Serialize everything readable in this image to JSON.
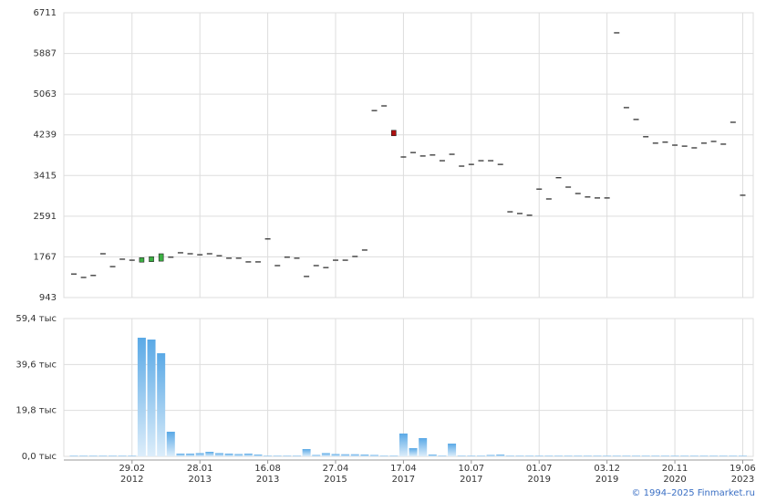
{
  "chart_data": [
    {
      "type": "candlestick",
      "open": [
        1420,
        1350,
        1390,
        1830,
        1570,
        1720,
        1700,
        1660,
        1670,
        1680,
        1760,
        1850,
        1830,
        1810,
        1830,
        1790,
        1740,
        1740,
        1665,
        1665,
        2130,
        1590,
        1760,
        1740,
        1370,
        1590,
        1550,
        1700,
        1700,
        1775,
        1905,
        4730,
        4825,
        4330,
        3790,
        3880,
        3810,
        3830,
        3715,
        3845,
        3605,
        3640,
        3715,
        3715,
        3640,
        2680,
        2645,
        2610,
        3140,
        2940,
        3370,
        3180,
        3050,
        2980,
        2960,
        2960,
        6305,
        4790,
        4550,
        4200,
        4070,
        4090,
        4030,
        4010,
        3975,
        4070,
        4105,
        4050,
        4493,
        3015
      ],
      "close": [
        1420,
        1350,
        1390,
        1830,
        1570,
        1720,
        1700,
        1750,
        1770,
        1830,
        1760,
        1850,
        1830,
        1810,
        1830,
        1790,
        1740,
        1740,
        1665,
        1665,
        2130,
        1590,
        1760,
        1740,
        1370,
        1590,
        1550,
        1700,
        1700,
        1775,
        1905,
        4730,
        4825,
        4220,
        3790,
        3880,
        3810,
        3830,
        3715,
        3845,
        3605,
        3640,
        3715,
        3715,
        3640,
        2680,
        2645,
        2610,
        3140,
        2940,
        3370,
        3180,
        3050,
        2980,
        2960,
        2960,
        6305,
        4790,
        4550,
        4200,
        4070,
        4090,
        4030,
        4010,
        3975,
        4070,
        4105,
        4050,
        4493,
        3015
      ],
      "ylim": [
        943,
        6711
      ],
      "yticks": [
        943,
        1767,
        2591,
        3415,
        4239,
        5063,
        5887,
        6711
      ],
      "color_up": "#3cb043",
      "color_down": "#b01010",
      "color": "#222222",
      "grid": true
    },
    {
      "type": "bar",
      "categories": [
        null,
        null,
        null,
        null,
        null,
        null,
        "29.02\n2012",
        null,
        null,
        null,
        null,
        null,
        null,
        "28.01\n2013",
        null,
        null,
        null,
        null,
        null,
        null,
        "16.08\n2013",
        null,
        null,
        null,
        null,
        null,
        null,
        "27.04\n2015",
        null,
        null,
        null,
        null,
        null,
        null,
        "17.04\n2017",
        null,
        null,
        null,
        null,
        null,
        null,
        "10.07\n2017",
        null,
        null,
        null,
        null,
        null,
        null,
        "01.07\n2019",
        null,
        null,
        null,
        null,
        null,
        null,
        "03.12\n2019",
        null,
        null,
        null,
        null,
        null,
        null,
        "20.11\n2020",
        null,
        null,
        null,
        null,
        null,
        null,
        "19.06\n2023"
      ],
      "values": [
        300,
        300,
        300,
        300,
        300,
        300,
        300,
        51140,
        50350,
        44450,
        10620,
        1200,
        1200,
        1400,
        1970,
        1400,
        1200,
        1000,
        1200,
        800,
        300,
        300,
        300,
        300,
        3150,
        600,
        1400,
        1000,
        900,
        900,
        800,
        600,
        300,
        300,
        9830,
        3540,
        7870,
        800,
        300,
        5500,
        300,
        300,
        300,
        600,
        800,
        300,
        300,
        300,
        300,
        300,
        300,
        300,
        300,
        300,
        300,
        300,
        300,
        300,
        300,
        300,
        300,
        300,
        300,
        300,
        300,
        300,
        300,
        300,
        300,
        300
      ],
      "ylim": [
        0,
        59400
      ],
      "yticks": [
        {
          "value": 0,
          "label": "0,0 тыс"
        },
        {
          "value": 19800,
          "label": "19,8 тыс"
        },
        {
          "value": 39600,
          "label": "39,6 тыс"
        },
        {
          "value": 59400,
          "label": "59,4 тыс"
        }
      ],
      "color": "#5aa9e6",
      "grid": true
    }
  ],
  "footer": "© 1994–2025 Finmarket.ru"
}
